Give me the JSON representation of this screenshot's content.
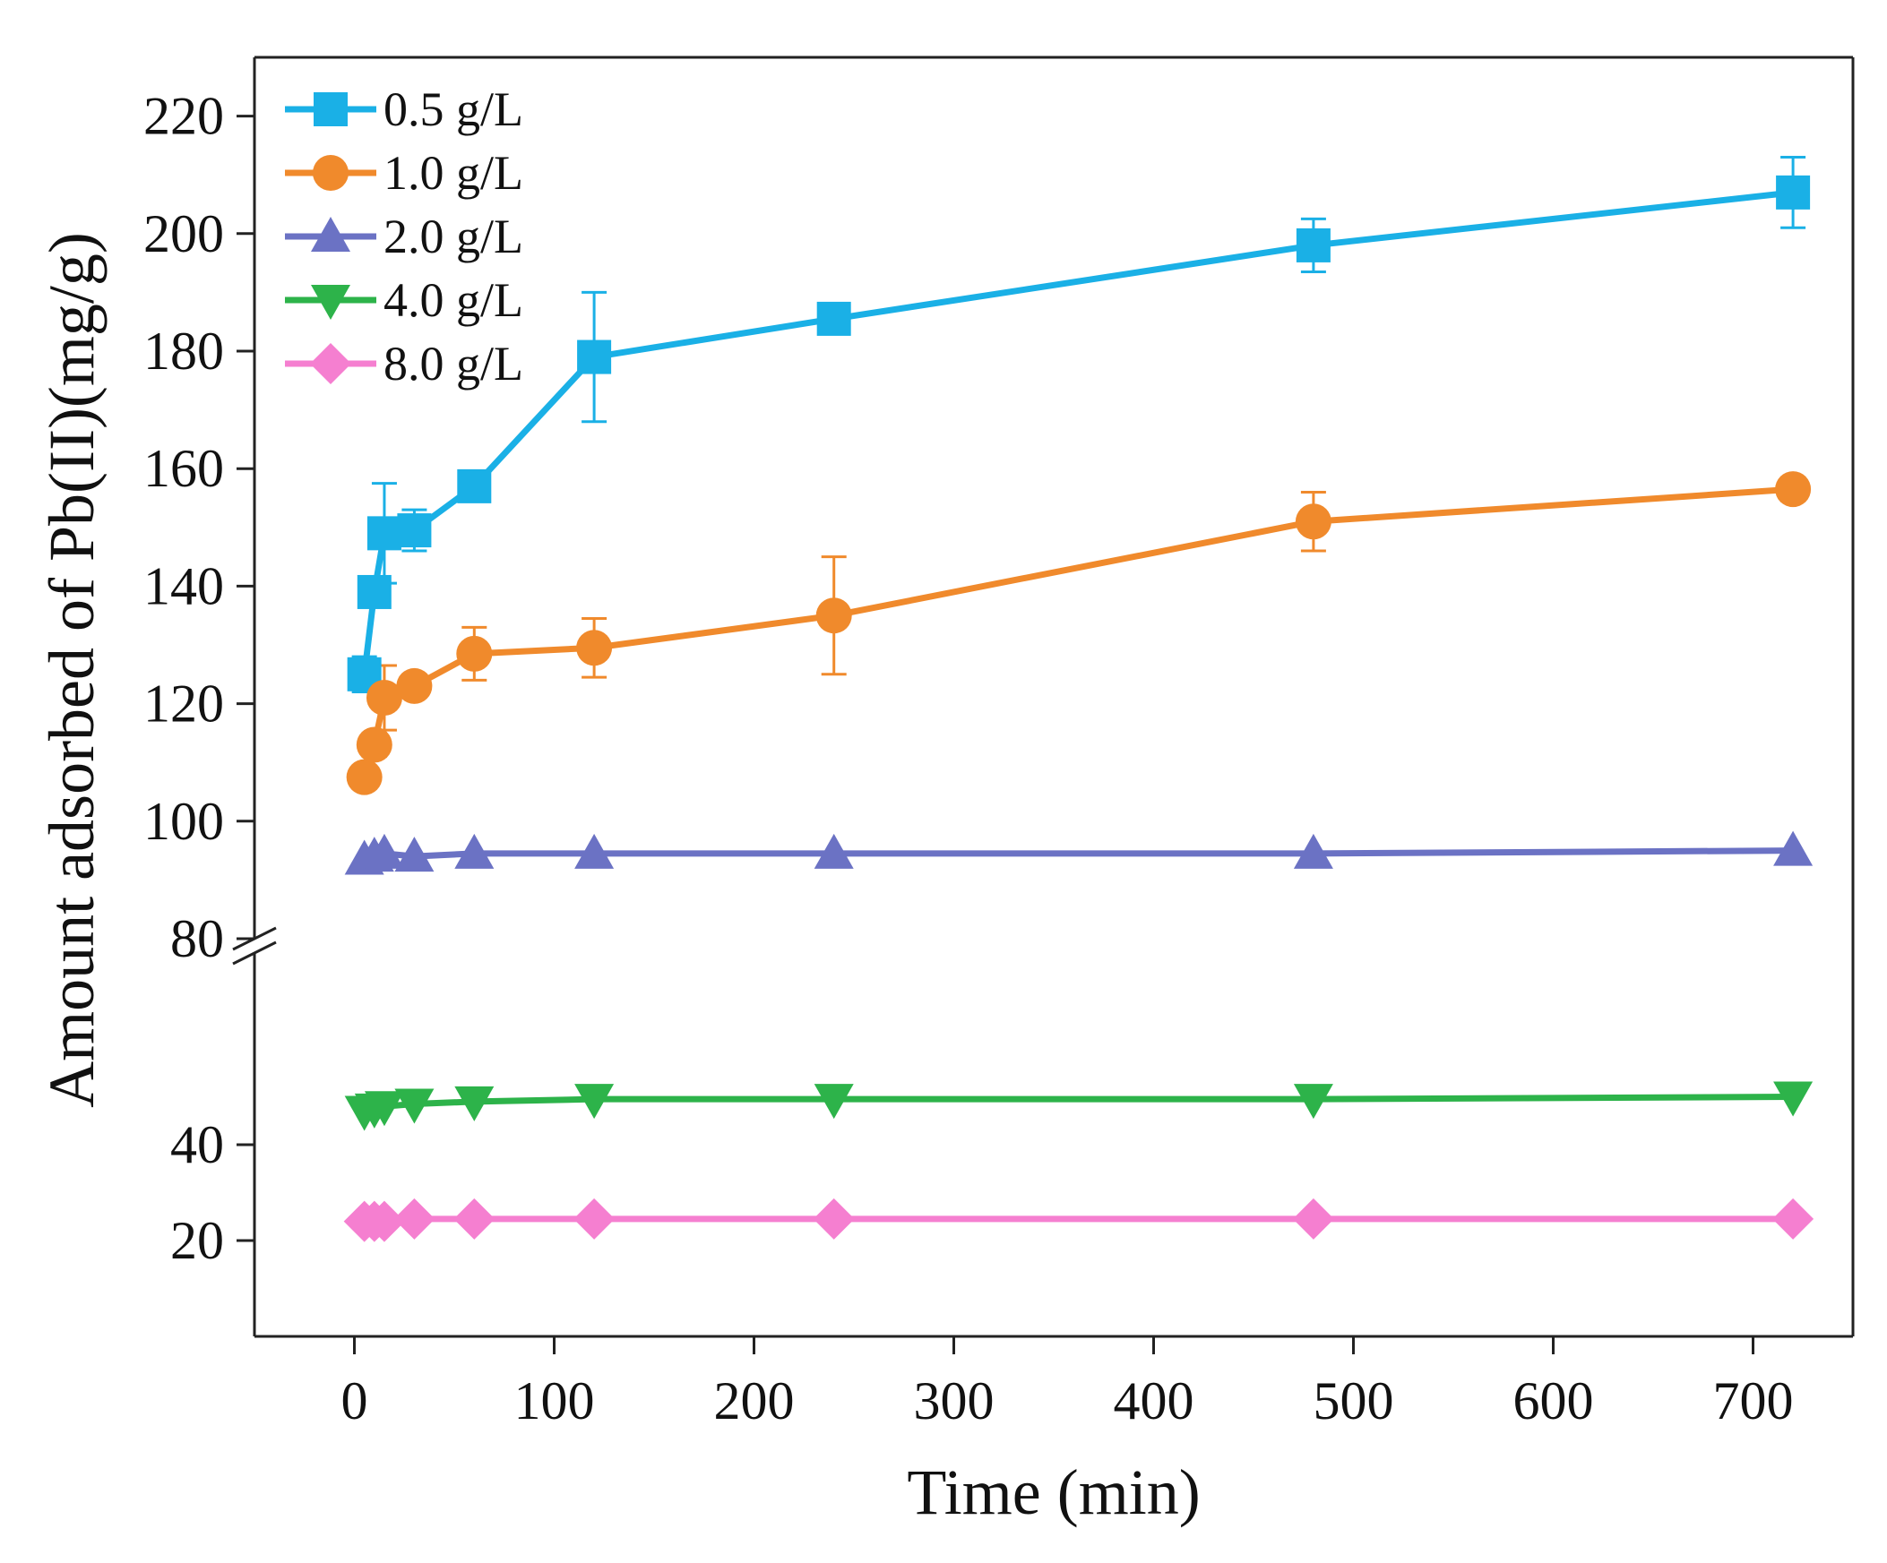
{
  "chart_data": {
    "type": "line",
    "title": "",
    "xlabel": "Time (min)",
    "ylabel": "Amount adsorbed of Pb(II)(mg/g)",
    "xlim": [
      -50,
      750
    ],
    "x_ticks": [
      0,
      100,
      200,
      300,
      400,
      500,
      600,
      700
    ],
    "x_tick_labels": [
      "0",
      "100",
      "200",
      "300",
      "400",
      "500",
      "600",
      "700"
    ],
    "y_axis_break": {
      "lower_segment": {
        "range": [
          0,
          80
        ],
        "ticks": [
          20,
          40
        ],
        "tick_labels": [
          "20",
          "40"
        ]
      },
      "upper_segment": {
        "range": [
          80,
          230
        ],
        "ticks": [
          80,
          100,
          120,
          140,
          160,
          180,
          200,
          220
        ],
        "tick_labels": [
          "80",
          "100",
          "120",
          "140",
          "160",
          "180",
          "200",
          "220"
        ]
      }
    },
    "grid": false,
    "legend_position": "top-left",
    "x": [
      5,
      10,
      15,
      30,
      60,
      120,
      240,
      480,
      720
    ],
    "series": [
      {
        "name": "0.5 g/L",
        "color": "#1ab0e6",
        "marker": "square",
        "values": [
          125,
          139,
          149,
          149.5,
          157,
          179,
          185.5,
          198,
          207
        ],
        "errors": [
          3,
          2,
          8.5,
          3.5,
          1.5,
          11,
          1,
          4.5,
          6
        ]
      },
      {
        "name": "1.0 g/L",
        "color": "#f08a2c",
        "marker": "circle",
        "values": [
          107.5,
          113,
          121,
          123,
          128.5,
          129.5,
          135,
          151,
          156.5
        ],
        "errors": [
          1,
          2,
          5.5,
          1.5,
          4.5,
          5,
          10,
          5,
          2
        ]
      },
      {
        "name": "2.0 g/L",
        "color": "#6b72c4",
        "marker": "triangle-up",
        "values": [
          93.5,
          94,
          94.5,
          94,
          94.5,
          94.5,
          94.5,
          94.5,
          95
        ],
        "errors": [
          0,
          0,
          0,
          0,
          0,
          0,
          0,
          0,
          0
        ]
      },
      {
        "name": "4.0 g/L",
        "color": "#2db34a",
        "marker": "triangle-down",
        "values": [
          47,
          47.5,
          48,
          48.5,
          49,
          49.5,
          49.5,
          49.5,
          50
        ],
        "errors": [
          0,
          0,
          0,
          0,
          0,
          0,
          0,
          0,
          0
        ]
      },
      {
        "name": "8.0 g/L",
        "color": "#f57fd0",
        "marker": "diamond",
        "values": [
          24,
          24,
          24,
          24.5,
          24.5,
          24.5,
          24.5,
          24.5,
          24.5
        ],
        "errors": [
          0,
          0,
          0,
          0,
          0,
          0,
          0,
          0,
          0
        ]
      }
    ]
  }
}
